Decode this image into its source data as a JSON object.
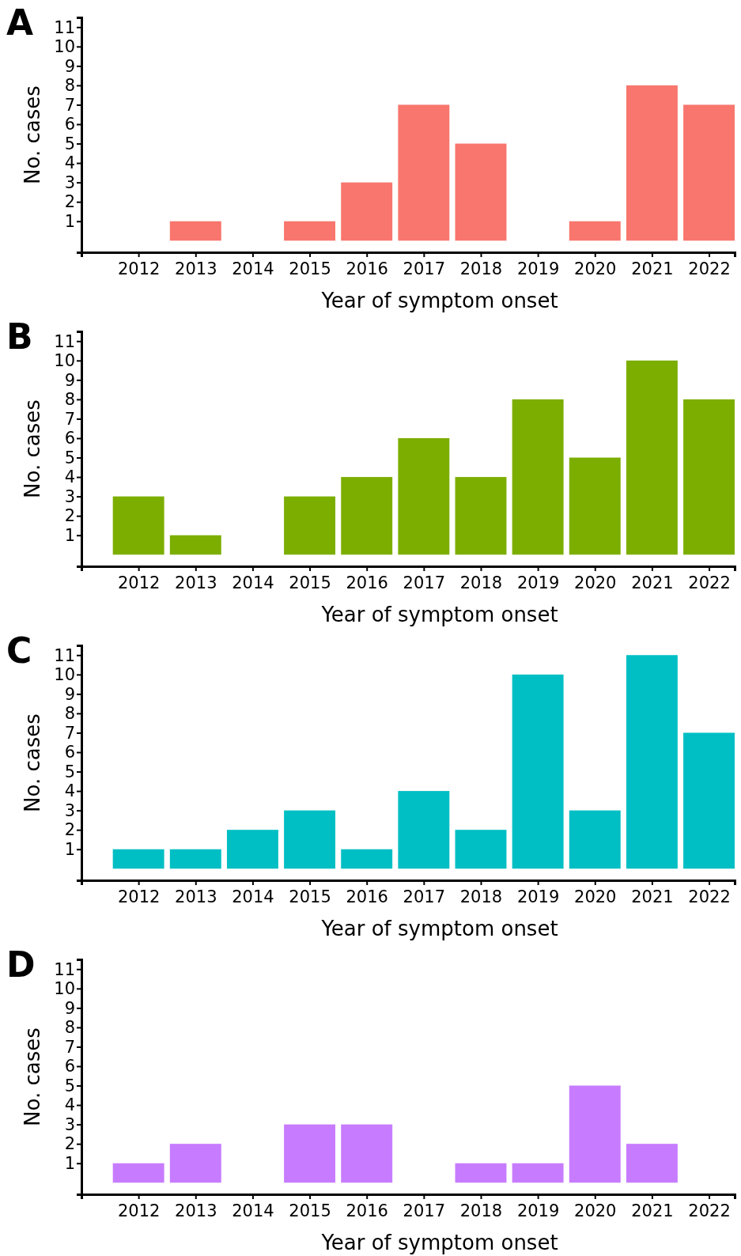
{
  "chart_data": [
    {
      "type": "bar",
      "title": "A",
      "xlabel": "Year of symptom onset",
      "ylabel": "No. cases",
      "categories": [
        "2012",
        "2013",
        "2014",
        "2015",
        "2016",
        "2017",
        "2018",
        "2019",
        "2020",
        "2021",
        "2022"
      ],
      "values": [
        0,
        1,
        0,
        1,
        3,
        7,
        5,
        0,
        1,
        8,
        7
      ],
      "color": "#f8766d",
      "ylim": [
        -0.6,
        11.5
      ],
      "yticks": [
        1,
        2,
        3,
        4,
        5,
        6,
        7,
        8,
        9,
        10,
        11
      ],
      "grid": false
    },
    {
      "type": "bar",
      "title": "B",
      "xlabel": "Year of symptom onset",
      "ylabel": "No. cases",
      "categories": [
        "2012",
        "2013",
        "2014",
        "2015",
        "2016",
        "2017",
        "2018",
        "2019",
        "2020",
        "2021",
        "2022"
      ],
      "values": [
        3,
        1,
        0,
        3,
        4,
        6,
        4,
        8,
        5,
        10,
        8
      ],
      "color": "#7cae00",
      "ylim": [
        -0.6,
        11.5
      ],
      "yticks": [
        1,
        2,
        3,
        4,
        5,
        6,
        7,
        8,
        9,
        10,
        11
      ],
      "grid": false
    },
    {
      "type": "bar",
      "title": "C",
      "xlabel": "Year of symptom onset",
      "ylabel": "No. cases",
      "categories": [
        "2012",
        "2013",
        "2014",
        "2015",
        "2016",
        "2017",
        "2018",
        "2019",
        "2020",
        "2021",
        "2022"
      ],
      "values": [
        1,
        1,
        2,
        3,
        1,
        4,
        2,
        10,
        3,
        11,
        7
      ],
      "color": "#00bfc4",
      "ylim": [
        -0.6,
        11.5
      ],
      "yticks": [
        1,
        2,
        3,
        4,
        5,
        6,
        7,
        8,
        9,
        10,
        11
      ],
      "grid": false
    },
    {
      "type": "bar",
      "title": "D",
      "xlabel": "Year of symptom onset",
      "ylabel": "No. cases",
      "categories": [
        "2012",
        "2013",
        "2014",
        "2015",
        "2016",
        "2017",
        "2018",
        "2019",
        "2020",
        "2021",
        "2022"
      ],
      "values": [
        1,
        2,
        0,
        3,
        3,
        0,
        1,
        1,
        5,
        2,
        0
      ],
      "color": "#c77cff",
      "ylim": [
        -0.6,
        11.5
      ],
      "yticks": [
        1,
        2,
        3,
        4,
        5,
        6,
        7,
        8,
        9,
        10,
        11
      ],
      "grid": false
    }
  ]
}
